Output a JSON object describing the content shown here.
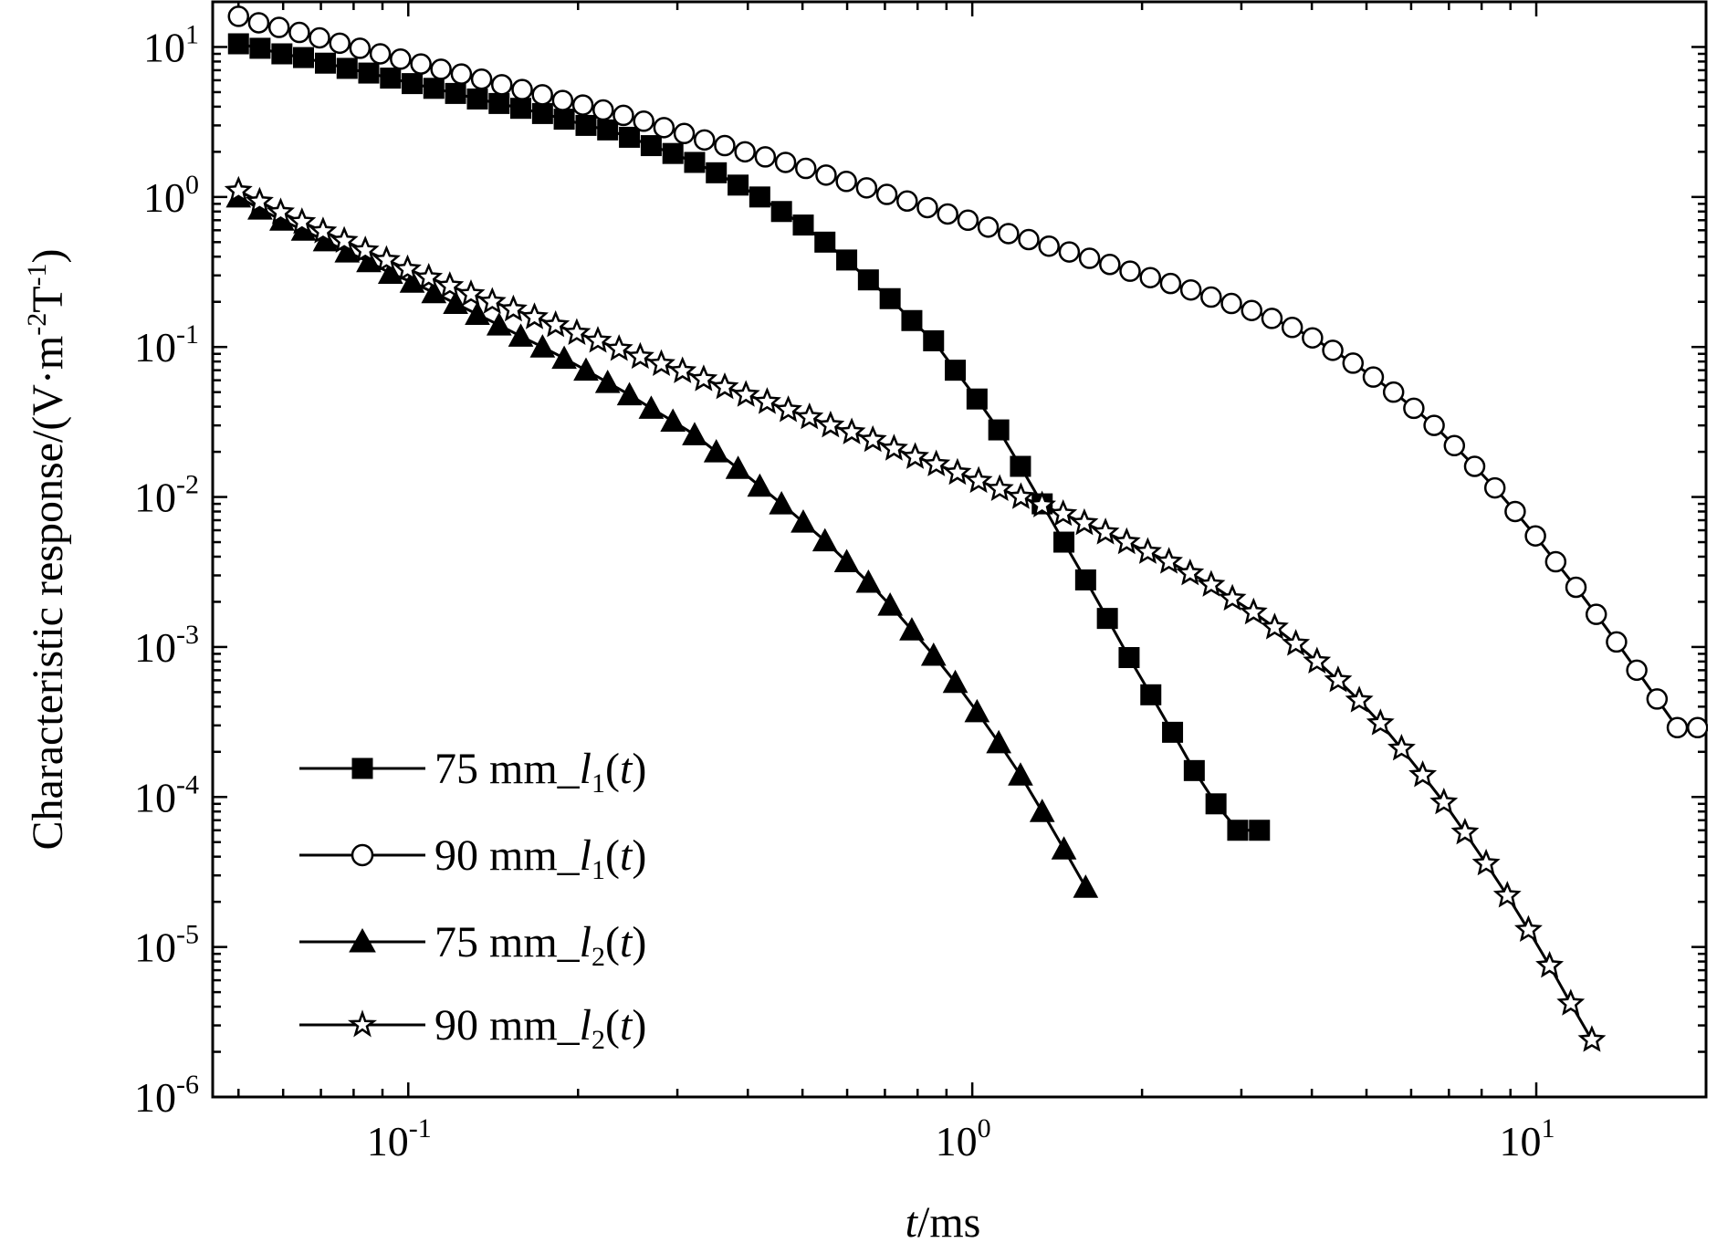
{
  "chart_data": {
    "type": "line",
    "title": "",
    "xlabel": {
      "italic": "t",
      "rest": "/ms"
    },
    "ylabel": {
      "text": "Characteristic response/(V·m",
      "sup1": "-2",
      "mid": "T",
      "sup2": "-1",
      "end": ")"
    },
    "xscale": "log",
    "yscale": "log",
    "xlim": [
      0.045,
      20
    ],
    "ylim": [
      1e-06,
      20
    ],
    "xticks": [
      {
        "value": 0.1,
        "base": "10",
        "exp": "-1"
      },
      {
        "value": 1,
        "base": "10",
        "exp": "0"
      },
      {
        "value": 10,
        "base": "10",
        "exp": "1"
      }
    ],
    "yticks": [
      {
        "value": 10,
        "base": "10",
        "exp": "1"
      },
      {
        "value": 1,
        "base": "10",
        "exp": "0"
      },
      {
        "value": 0.1,
        "base": "10",
        "exp": "-1"
      },
      {
        "value": 0.01,
        "base": "10",
        "exp": "-2"
      },
      {
        "value": 0.001,
        "base": "10",
        "exp": "-3"
      },
      {
        "value": 0.0001,
        "base": "10",
        "exp": "-4"
      },
      {
        "value": 1e-05,
        "base": "10",
        "exp": "-5"
      },
      {
        "value": 1e-06,
        "base": "10",
        "exp": "-6"
      }
    ],
    "legend_position": "bottom-left",
    "series": [
      {
        "name": "75 mm_l1(t)",
        "label": {
          "prefix": "75 mm_",
          "var": "l",
          "sub": "1",
          "open": "(",
          "arg": "t",
          "close": ")"
        },
        "marker": "square",
        "x": [
          0.05,
          0.0546,
          0.0597,
          0.0652,
          0.0713,
          0.0779,
          0.0851,
          0.093,
          0.1016,
          0.111,
          0.1213,
          0.1326,
          0.1449,
          0.1583,
          0.173,
          0.189,
          0.2066,
          0.2257,
          0.2467,
          0.2696,
          0.2946,
          0.3219,
          0.3517,
          0.3844,
          0.42,
          0.459,
          0.5016,
          0.548,
          0.5989,
          0.6544,
          0.7151,
          0.7814,
          0.8539,
          0.9331,
          1.0196,
          1.1142,
          1.2175,
          1.3304,
          1.4538,
          1.5887,
          1.736,
          1.897,
          2.073,
          2.2652,
          2.4753,
          2.7049,
          2.9558,
          3.23
        ],
        "y": [
          10.5,
          9.8,
          9.0,
          8.5,
          7.8,
          7.2,
          6.7,
          6.2,
          5.7,
          5.3,
          4.9,
          4.5,
          4.2,
          3.9,
          3.6,
          3.3,
          3.0,
          2.8,
          2.5,
          2.2,
          1.95,
          1.7,
          1.45,
          1.2,
          1.0,
          0.8,
          0.65,
          0.5,
          0.38,
          0.28,
          0.21,
          0.15,
          0.11,
          0.07,
          0.045,
          0.028,
          0.016,
          0.009,
          0.005,
          0.0028,
          0.00155,
          0.00085,
          0.00048,
          0.00027,
          0.00015,
          9e-05,
          6e-05,
          6e-05
        ]
      },
      {
        "name": "90 mm_l1(t)",
        "label": {
          "prefix": "90 mm_",
          "var": "l",
          "sub": "1",
          "open": "(",
          "arg": "t",
          "close": ")"
        },
        "marker": "circle",
        "x": [
          0.05,
          0.0543,
          0.059,
          0.0641,
          0.0696,
          0.0756,
          0.0821,
          0.0892,
          0.0969,
          0.1053,
          0.1143,
          0.1242,
          0.1349,
          0.1465,
          0.1592,
          0.1729,
          0.1878,
          0.204,
          0.2216,
          0.2407,
          0.2615,
          0.284,
          0.3085,
          0.3351,
          0.364,
          0.3954,
          0.4295,
          0.4666,
          0.5068,
          0.5505,
          0.598,
          0.6496,
          0.7056,
          0.7665,
          0.8326,
          0.9044,
          0.9825,
          1.0672,
          1.1593,
          1.2593,
          1.3679,
          1.4859,
          1.6141,
          1.7534,
          1.9046,
          2.0689,
          2.2474,
          2.4413,
          2.6519,
          2.8807,
          3.1292,
          3.3991,
          3.6924,
          4.0109,
          4.3569,
          4.7328,
          5.1411,
          5.5846,
          6.0663,
          6.5897,
          7.1581,
          7.7757,
          8.4465,
          9.1751,
          9.9666,
          10.8264,
          11.7604,
          12.7749,
          13.877,
          15.0741,
          16.3745,
          17.7871,
          19.3215
        ],
        "y": [
          16,
          14.5,
          13.5,
          12.5,
          11.5,
          10.6,
          9.8,
          9.0,
          8.3,
          7.7,
          7.1,
          6.6,
          6.1,
          5.6,
          5.2,
          4.8,
          4.4,
          4.1,
          3.8,
          3.5,
          3.2,
          2.9,
          2.65,
          2.4,
          2.2,
          2.0,
          1.85,
          1.7,
          1.55,
          1.4,
          1.27,
          1.15,
          1.04,
          0.94,
          0.85,
          0.77,
          0.7,
          0.63,
          0.57,
          0.52,
          0.47,
          0.43,
          0.39,
          0.355,
          0.32,
          0.29,
          0.265,
          0.24,
          0.215,
          0.195,
          0.175,
          0.155,
          0.135,
          0.115,
          0.095,
          0.078,
          0.063,
          0.05,
          0.039,
          0.03,
          0.022,
          0.016,
          0.0115,
          0.008,
          0.0055,
          0.0037,
          0.0025,
          0.00165,
          0.00108,
          0.0007,
          0.00045,
          0.00029,
          0.00029
        ]
      },
      {
        "name": "75 mm_l2(t)",
        "label": {
          "prefix": "75 mm_",
          "var": "l",
          "sub": "2",
          "open": "(",
          "arg": "t",
          "close": ")"
        },
        "marker": "triangle",
        "x": [
          0.05,
          0.0546,
          0.0597,
          0.0652,
          0.0713,
          0.0779,
          0.0851,
          0.093,
          0.1016,
          0.111,
          0.1213,
          0.1326,
          0.1449,
          0.1583,
          0.173,
          0.189,
          0.2066,
          0.2257,
          0.2467,
          0.2696,
          0.2946,
          0.3219,
          0.3517,
          0.3844,
          0.42,
          0.459,
          0.5016,
          0.548,
          0.5989,
          0.6544,
          0.7151,
          0.7814,
          0.8539,
          0.9331,
          1.0196,
          1.1142,
          1.2175,
          1.3304,
          1.4538,
          1.5887
        ],
        "y": [
          1.0,
          0.83,
          0.7,
          0.6,
          0.51,
          0.43,
          0.37,
          0.31,
          0.27,
          0.23,
          0.195,
          0.165,
          0.14,
          0.118,
          0.1,
          0.084,
          0.07,
          0.058,
          0.048,
          0.039,
          0.032,
          0.026,
          0.02,
          0.0155,
          0.0118,
          0.009,
          0.0068,
          0.0051,
          0.0037,
          0.0027,
          0.0019,
          0.0013,
          0.00088,
          0.00058,
          0.00037,
          0.00023,
          0.00014,
          8e-05,
          4.5e-05,
          2.5e-05
        ]
      },
      {
        "name": "90 mm_l2(t)",
        "label": {
          "prefix": "90 mm_",
          "var": "l",
          "sub": "2",
          "open": "(",
          "arg": "t",
          "close": ")"
        },
        "marker": "star",
        "x": [
          0.05,
          0.0545,
          0.0594,
          0.0648,
          0.0706,
          0.077,
          0.0839,
          0.0915,
          0.0997,
          0.1087,
          0.1185,
          0.1292,
          0.1409,
          0.1536,
          0.1674,
          0.1825,
          0.199,
          0.2169,
          0.2365,
          0.2578,
          0.281,
          0.3064,
          0.334,
          0.3641,
          0.397,
          0.4328,
          0.4718,
          0.5144,
          0.5607,
          0.6113,
          0.6664,
          0.7265,
          0.792,
          0.8634,
          0.9413,
          1.0262,
          1.1187,
          1.2196,
          1.3296,
          1.4495,
          1.5802,
          1.7227,
          1.8781,
          2.0474,
          2.232,
          2.4333,
          2.6527,
          2.8919,
          3.1527,
          3.437,
          3.7469,
          4.0848,
          4.4531,
          4.8547,
          5.2924,
          5.7697,
          6.2899,
          6.8571,
          7.4755,
          8.1496,
          8.8845,
          9.6857,
          10.5591,
          11.5112,
          12.5493
        ],
        "y": [
          1.1,
          0.93,
          0.79,
          0.68,
          0.59,
          0.51,
          0.44,
          0.38,
          0.33,
          0.29,
          0.255,
          0.225,
          0.2,
          0.178,
          0.158,
          0.14,
          0.124,
          0.11,
          0.097,
          0.086,
          0.077,
          0.069,
          0.061,
          0.054,
          0.048,
          0.043,
          0.038,
          0.034,
          0.03,
          0.027,
          0.024,
          0.021,
          0.0185,
          0.0165,
          0.0145,
          0.0128,
          0.0113,
          0.01,
          0.0088,
          0.0077,
          0.0067,
          0.0058,
          0.005,
          0.0043,
          0.0037,
          0.0031,
          0.0026,
          0.0021,
          0.0017,
          0.00135,
          0.00105,
          0.0008,
          0.0006,
          0.00044,
          0.00031,
          0.00021,
          0.00014,
          9.2e-05,
          5.8e-05,
          3.6e-05,
          2.2e-05,
          1.3e-05,
          7.5e-06,
          4.2e-06,
          2.4e-06
        ]
      }
    ]
  }
}
